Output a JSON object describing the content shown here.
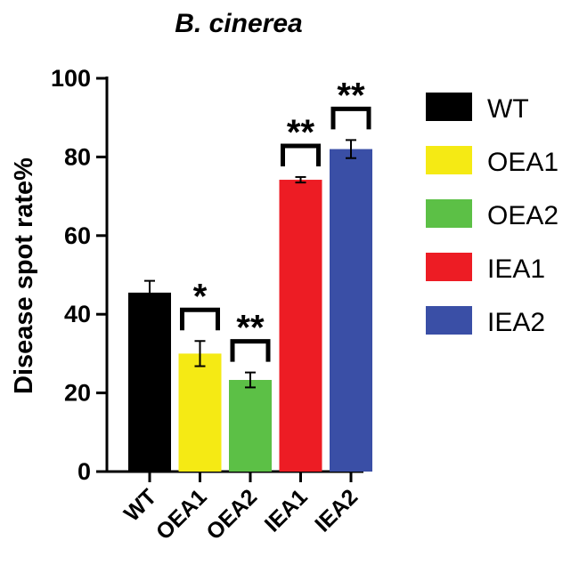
{
  "chart_data": {
    "type": "bar",
    "title": "B. cinerea",
    "ylabel": "Disease spot rate%",
    "xlabel": "",
    "ylim": [
      0,
      100
    ],
    "yticks": [
      0,
      20,
      40,
      60,
      80,
      100
    ],
    "categories": [
      "WT",
      "OEA1",
      "OEA2",
      "IEA1",
      "IEA2"
    ],
    "values": [
      45.5,
      30.0,
      23.3,
      74.2,
      82.0
    ],
    "errors": [
      3.0,
      3.2,
      1.9,
      0.7,
      2.3
    ],
    "significance": [
      "",
      "*",
      "**",
      "**",
      "**"
    ],
    "colors": [
      "#000000",
      "#f5ea14",
      "#5cc046",
      "#ed1c24",
      "#3a4fa6"
    ],
    "legend": {
      "position": "right",
      "entries": [
        "WT",
        "OEA1",
        "OEA2",
        "IEA1",
        "IEA2"
      ]
    },
    "grid": false
  }
}
